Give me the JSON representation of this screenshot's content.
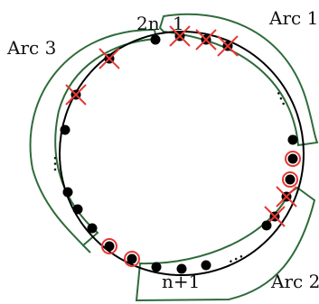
{
  "labels": {
    "top_left_index": "2n",
    "top_right_index": "1",
    "bottom_index": "n+1",
    "arc1": "Arc 1",
    "arc2": "Arc 2",
    "arc3": "Arc 3",
    "ellipsis": "..."
  },
  "colors": {
    "circle": "#000000",
    "node": "#000000",
    "arc_outline": "#2e6b3a",
    "marker": "#e53935"
  },
  "nodes": [
    {
      "id": "top-1",
      "marks": [
        "cross"
      ]
    },
    {
      "id": "top-2",
      "marks": [
        "cross"
      ]
    },
    {
      "id": "top-3",
      "marks": [
        "cross"
      ]
    },
    {
      "id": "top-left-1",
      "marks": []
    },
    {
      "id": "upper-left-1",
      "marks": [
        "cross"
      ]
    },
    {
      "id": "left-1",
      "marks": []
    },
    {
      "id": "left-2",
      "marks": [
        "cross"
      ]
    },
    {
      "id": "left-3",
      "marks": []
    },
    {
      "id": "left-4",
      "marks": []
    },
    {
      "id": "left-5",
      "marks": []
    },
    {
      "id": "bottom-left-1",
      "marks": []
    },
    {
      "id": "bottom-left-2",
      "marks": [
        "ring"
      ]
    },
    {
      "id": "bottom-left-3",
      "marks": [
        "ring"
      ]
    },
    {
      "id": "bottom-1",
      "marks": []
    },
    {
      "id": "bottom-2",
      "marks": []
    },
    {
      "id": "bottom-3",
      "marks": []
    },
    {
      "id": "right-1",
      "marks": []
    },
    {
      "id": "right-2",
      "marks": [
        "ring"
      ]
    },
    {
      "id": "right-3",
      "marks": [
        "ring"
      ]
    },
    {
      "id": "right-4",
      "marks": [
        "cross"
      ]
    },
    {
      "id": "right-5",
      "marks": [
        "cross"
      ]
    },
    {
      "id": "right-6",
      "marks": []
    }
  ]
}
